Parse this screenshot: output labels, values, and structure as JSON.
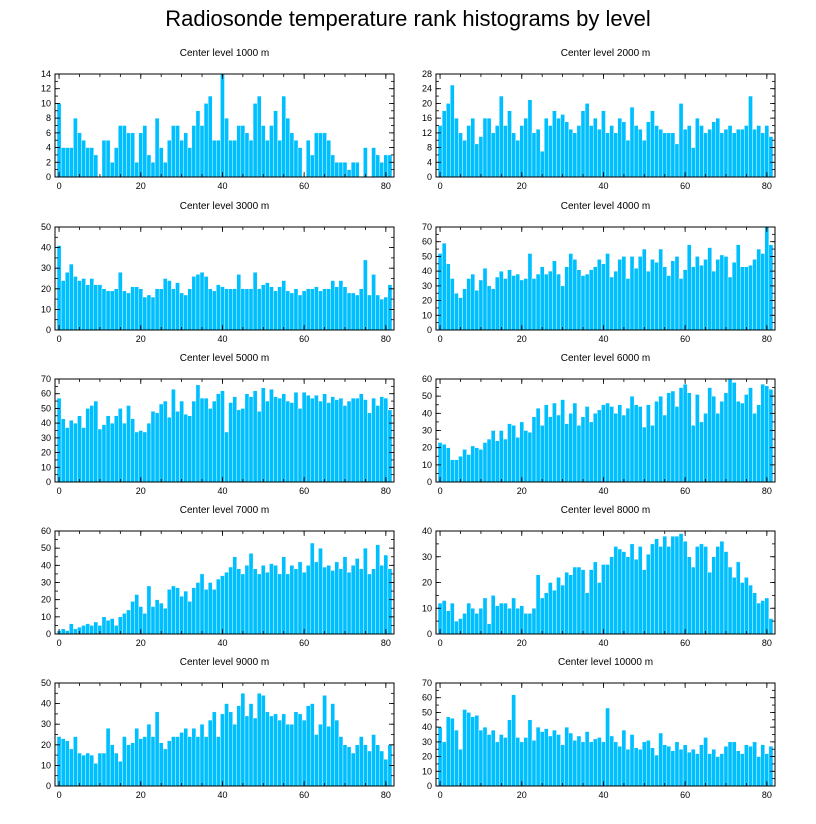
{
  "figure_title": "Radiosonde temperature rank histograms by level",
  "chart_data": [
    {
      "type": "bar",
      "title": "Center level 1000 m",
      "ylim": [
        0,
        14
      ],
      "yticks": [
        0,
        2,
        4,
        6,
        8,
        10,
        12,
        14
      ],
      "xlim": [
        -1,
        82
      ],
      "xticks": [
        0,
        20,
        40,
        60,
        80
      ],
      "values": [
        10,
        4,
        4,
        4,
        8,
        6,
        5,
        4,
        4,
        3,
        0,
        5,
        5,
        2,
        4,
        7,
        7,
        6,
        6,
        2,
        6,
        7,
        3,
        2,
        8,
        4,
        2,
        5,
        7,
        7,
        5,
        6,
        4,
        7,
        9,
        7,
        10,
        11,
        5,
        5,
        14,
        8,
        5,
        5,
        7,
        7,
        6,
        5,
        10,
        11,
        7,
        5,
        7,
        9,
        5,
        11,
        8,
        6,
        5,
        4,
        0,
        5,
        3,
        6,
        6,
        6,
        5,
        3,
        2,
        2,
        2,
        1,
        2,
        2,
        0,
        4,
        0,
        4,
        3,
        2,
        3,
        3
      ],
      "categories_from": 0,
      "categories_to": 81
    },
    {
      "type": "bar",
      "title": "Center level 2000 m",
      "ylim": [
        0,
        28
      ],
      "yticks": [
        0,
        4,
        8,
        12,
        16,
        20,
        24,
        28
      ],
      "xlim": [
        -1,
        82
      ],
      "xticks": [
        0,
        20,
        40,
        60,
        80
      ],
      "values": [
        14,
        18,
        20,
        25,
        16,
        12,
        10,
        14,
        16,
        9,
        11,
        16,
        16,
        12,
        14,
        22,
        14,
        18,
        12,
        10,
        14,
        16,
        21,
        12,
        13,
        7,
        16,
        14,
        18,
        16,
        17,
        15,
        13,
        12,
        14,
        18,
        20,
        14,
        16,
        13,
        18,
        12,
        14,
        12,
        16,
        15,
        10,
        19,
        14,
        13,
        10,
        15,
        18,
        14,
        13,
        12,
        12,
        12,
        9,
        20,
        13,
        14,
        8,
        16,
        14,
        12,
        13,
        15,
        16,
        12,
        13,
        14,
        12,
        13,
        13,
        14,
        22,
        13,
        14,
        12,
        14,
        11
      ],
      "categories_from": 0,
      "categories_to": 81
    },
    {
      "type": "bar",
      "title": "Center level 3000 m",
      "ylim": [
        0,
        50
      ],
      "yticks": [
        0,
        10,
        20,
        30,
        40,
        50
      ],
      "xlim": [
        -1,
        82
      ],
      "xticks": [
        0,
        20,
        40,
        60,
        80
      ],
      "values": [
        41,
        24,
        28,
        32,
        26,
        24,
        25,
        22,
        25,
        22,
        22,
        20,
        19,
        19,
        20,
        28,
        19,
        18,
        21,
        21,
        20,
        16,
        17,
        16,
        20,
        20,
        25,
        24,
        20,
        23,
        18,
        17,
        20,
        26,
        27,
        28,
        26,
        20,
        19,
        22,
        21,
        20,
        20,
        20,
        27,
        20,
        20,
        20,
        28,
        20,
        22,
        23,
        21,
        19,
        21,
        24,
        19,
        18,
        20,
        17,
        19,
        20,
        20,
        21,
        19,
        20,
        20,
        24,
        21,
        24,
        21,
        18,
        18,
        17,
        20,
        34,
        17,
        27,
        17,
        15,
        16,
        22
      ],
      "categories_from": 0,
      "categories_to": 81
    },
    {
      "type": "bar",
      "title": "Center level 4000 m",
      "ylim": [
        0,
        70
      ],
      "yticks": [
        0,
        10,
        20,
        30,
        40,
        50,
        60,
        70
      ],
      "xlim": [
        -1,
        82
      ],
      "xticks": [
        0,
        20,
        40,
        60,
        80
      ],
      "values": [
        52,
        59,
        45,
        35,
        25,
        22,
        28,
        35,
        38,
        27,
        34,
        42,
        30,
        28,
        36,
        40,
        35,
        41,
        37,
        38,
        34,
        35,
        52,
        35,
        38,
        43,
        38,
        40,
        47,
        38,
        30,
        43,
        52,
        48,
        41,
        37,
        38,
        41,
        43,
        48,
        45,
        52,
        36,
        40,
        48,
        50,
        35,
        50,
        42,
        50,
        55,
        40,
        48,
        46,
        55,
        43,
        37,
        47,
        50,
        35,
        41,
        58,
        43,
        50,
        44,
        48,
        56,
        40,
        48,
        51,
        50,
        36,
        46,
        58,
        43,
        43,
        44,
        48,
        55,
        52,
        70,
        58
      ],
      "categories_from": 0,
      "categories_to": 81
    },
    {
      "type": "bar",
      "title": "Center level 5000 m",
      "ylim": [
        0,
        70
      ],
      "yticks": [
        0,
        10,
        20,
        30,
        40,
        50,
        60,
        70
      ],
      "xlim": [
        -1,
        82
      ],
      "xticks": [
        0,
        20,
        40,
        60,
        80
      ],
      "values": [
        57,
        43,
        37,
        42,
        40,
        45,
        37,
        50,
        52,
        55,
        36,
        39,
        45,
        40,
        45,
        50,
        40,
        52,
        43,
        34,
        35,
        34,
        40,
        48,
        47,
        53,
        55,
        44,
        63,
        48,
        55,
        46,
        45,
        55,
        66,
        57,
        57,
        50,
        55,
        60,
        62,
        34,
        54,
        58,
        49,
        50,
        60,
        58,
        62,
        48,
        64,
        55,
        63,
        58,
        57,
        60,
        55,
        54,
        61,
        50,
        61,
        59,
        57,
        59,
        55,
        60,
        54,
        58,
        56,
        57,
        52,
        55,
        57,
        57,
        60,
        56,
        47,
        57,
        52,
        58,
        57,
        49
      ],
      "categories_from": 0,
      "categories_to": 81
    },
    {
      "type": "bar",
      "title": "Center level 6000 m",
      "ylim": [
        0,
        60
      ],
      "yticks": [
        0,
        10,
        20,
        30,
        40,
        50,
        60
      ],
      "xlim": [
        -1,
        82
      ],
      "xticks": [
        0,
        20,
        40,
        60,
        80
      ],
      "values": [
        23,
        22,
        20,
        13,
        13,
        15,
        19,
        16,
        21,
        20,
        19,
        23,
        25,
        30,
        24,
        30,
        25,
        34,
        33,
        26,
        35,
        30,
        29,
        38,
        43,
        33,
        45,
        38,
        46,
        39,
        48,
        34,
        40,
        46,
        33,
        38,
        44,
        35,
        40,
        42,
        45,
        46,
        44,
        40,
        45,
        39,
        43,
        50,
        45,
        44,
        32,
        45,
        33,
        47,
        50,
        39,
        52,
        53,
        44,
        55,
        57,
        52,
        33,
        51,
        35,
        40,
        55,
        50,
        40,
        47,
        52,
        60,
        58,
        47,
        46,
        51,
        55,
        40,
        45,
        57,
        56,
        54
      ],
      "categories_from": 0,
      "categories_to": 81
    },
    {
      "type": "bar",
      "title": "Center level 7000 m",
      "ylim": [
        0,
        60
      ],
      "yticks": [
        0,
        10,
        20,
        30,
        40,
        50,
        60
      ],
      "xlim": [
        -1,
        82
      ],
      "xticks": [
        0,
        20,
        40,
        60,
        80
      ],
      "values": [
        2,
        3,
        2,
        6,
        3,
        4,
        5,
        6,
        5,
        7,
        5,
        10,
        8,
        9,
        5,
        10,
        12,
        14,
        19,
        23,
        16,
        12,
        28,
        16,
        20,
        18,
        15,
        26,
        28,
        27,
        22,
        25,
        19,
        27,
        30,
        35,
        26,
        30,
        26,
        32,
        34,
        36,
        39,
        45,
        38,
        35,
        40,
        47,
        38,
        35,
        40,
        36,
        41,
        40,
        35,
        45,
        35,
        40,
        38,
        42,
        36,
        40,
        53,
        42,
        50,
        39,
        40,
        37,
        42,
        38,
        45,
        36,
        40,
        44,
        38,
        50,
        35,
        38,
        52,
        40,
        46,
        38
      ],
      "categories_from": 0,
      "categories_to": 81
    },
    {
      "type": "bar",
      "title": "Center level 8000 m",
      "ylim": [
        0,
        40
      ],
      "yticks": [
        0,
        10,
        20,
        30,
        40
      ],
      "xlim": [
        -1,
        82
      ],
      "xticks": [
        0,
        20,
        40,
        60,
        80
      ],
      "values": [
        12,
        13,
        9,
        12,
        5,
        6,
        8,
        12,
        10,
        8,
        10,
        14,
        4,
        15,
        11,
        12,
        12,
        10,
        14,
        10,
        11,
        8,
        8,
        10,
        23,
        14,
        16,
        20,
        17,
        22,
        19,
        24,
        23,
        26,
        26,
        25,
        16,
        25,
        28,
        20,
        27,
        27,
        30,
        34,
        33,
        32,
        30,
        35,
        29,
        34,
        25,
        31,
        35,
        37,
        34,
        38,
        34,
        38,
        38,
        39,
        36,
        30,
        26,
        34,
        35,
        34,
        24,
        30,
        34,
        36,
        32,
        26,
        22,
        28,
        20,
        22,
        19,
        16,
        12,
        13,
        14,
        6
      ],
      "categories_from": 0,
      "categories_to": 81
    },
    {
      "type": "bar",
      "title": "Center level 9000 m",
      "ylim": [
        0,
        50
      ],
      "yticks": [
        0,
        10,
        20,
        30,
        40,
        50
      ],
      "xlim": [
        -1,
        82
      ],
      "xticks": [
        0,
        20,
        40,
        60,
        80
      ],
      "values": [
        24,
        23,
        22,
        18,
        24,
        16,
        15,
        16,
        15,
        11,
        16,
        16,
        28,
        20,
        16,
        12,
        24,
        20,
        21,
        28,
        23,
        24,
        30,
        24,
        36,
        21,
        18,
        22,
        24,
        24,
        26,
        28,
        24,
        28,
        24,
        30,
        24,
        32,
        36,
        24,
        35,
        40,
        36,
        30,
        39,
        45,
        34,
        40,
        33,
        45,
        44,
        36,
        34,
        35,
        32,
        35,
        30,
        30,
        36,
        35,
        32,
        39,
        40,
        25,
        30,
        44,
        29,
        40,
        32,
        24,
        20,
        19,
        16,
        20,
        24,
        20,
        17,
        25,
        20,
        17,
        13,
        20
      ],
      "categories_from": 0,
      "categories_to": 81
    },
    {
      "type": "bar",
      "title": "Center level 10000 m",
      "ylim": [
        0,
        70
      ],
      "yticks": [
        0,
        10,
        20,
        30,
        40,
        50,
        60,
        70
      ],
      "xlim": [
        -1,
        82
      ],
      "xticks": [
        0,
        20,
        40,
        60,
        80
      ],
      "values": [
        40,
        30,
        47,
        46,
        38,
        25,
        52,
        50,
        47,
        48,
        38,
        40,
        35,
        38,
        30,
        35,
        33,
        45,
        62,
        33,
        30,
        33,
        45,
        31,
        40,
        37,
        39,
        34,
        38,
        35,
        28,
        40,
        36,
        31,
        34,
        30,
        37,
        30,
        32,
        33,
        30,
        53,
        34,
        30,
        27,
        38,
        25,
        35,
        26,
        25,
        30,
        31,
        26,
        21,
        36,
        28,
        27,
        24,
        30,
        25,
        28,
        23,
        25,
        22,
        28,
        33,
        22,
        25,
        20,
        22,
        27,
        30,
        30,
        24,
        22,
        28,
        27,
        30,
        20,
        28,
        22,
        27
      ],
      "categories_from": 0,
      "categories_to": 81
    }
  ]
}
